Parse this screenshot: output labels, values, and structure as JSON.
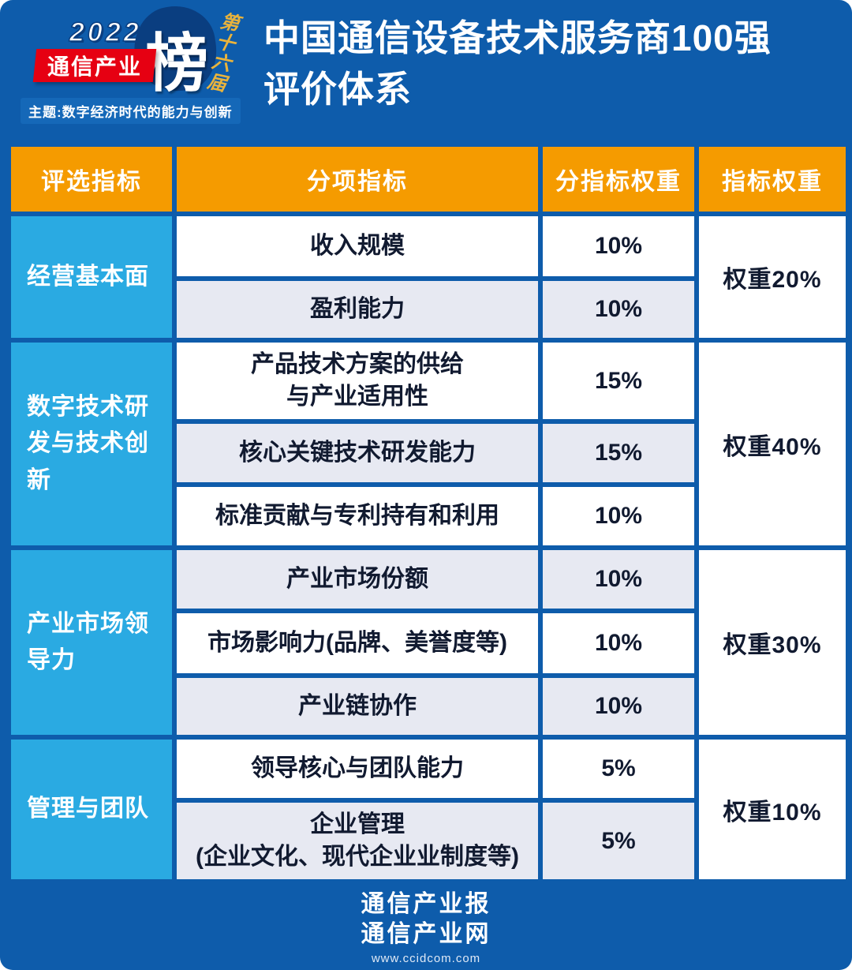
{
  "header": {
    "logo": {
      "year": "2022",
      "brand": "通信产业",
      "bang": "榜",
      "edition": "第十六届",
      "theme": "主题:数字经济时代的能力与创新"
    },
    "title_line1": "中国通信设备技术服务商100强",
    "title_line2": "评价体系"
  },
  "table": {
    "headers": [
      "评选指标",
      "分项指标",
      "分指标权重",
      "指标权重"
    ],
    "groups": [
      {
        "category": "经营基本面",
        "weight": "权重20%",
        "rows": [
          {
            "sub": "收入规模",
            "pct": "10%"
          },
          {
            "sub": "盈利能力",
            "pct": "10%"
          }
        ]
      },
      {
        "category": "数字技术研发与技术创新",
        "weight": "权重40%",
        "rows": [
          {
            "sub": "产品技术方案的供给\n与产业适用性",
            "pct": "15%"
          },
          {
            "sub": "核心关键技术研发能力",
            "pct": "15%"
          },
          {
            "sub": "标准贡献与专利持有和利用",
            "pct": "10%"
          }
        ]
      },
      {
        "category": "产业市场领导力",
        "weight": "权重30%",
        "rows": [
          {
            "sub": "产业市场份额",
            "pct": "10%"
          },
          {
            "sub": "市场影响力(品牌、美誉度等)",
            "pct": "10%"
          },
          {
            "sub": "产业链协作",
            "pct": "10%"
          }
        ]
      },
      {
        "category": "管理与团队",
        "weight": "权重10%",
        "rows": [
          {
            "sub": "领导核心与团队能力",
            "pct": "5%"
          },
          {
            "sub": "企业管理\n(企业文化、现代企业业制度等)",
            "pct": "5%"
          }
        ]
      }
    ]
  },
  "footer": {
    "line1": "通信产业报",
    "line2": "通信产业网",
    "url": "www.ccidcom.com"
  }
}
